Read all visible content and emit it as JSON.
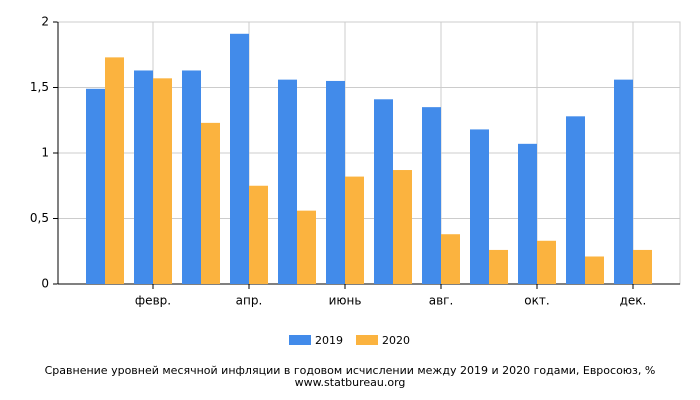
{
  "chart_data": {
    "type": "bar",
    "title": "Сравнение уровней месячной инфляции в годовом исчислении между 2019 и 2020 годами, Евросоюз, %",
    "subtitle": "www.statbureau.org",
    "categories": [
      null,
      "февр.",
      null,
      "апр.",
      null,
      "июнь",
      null,
      "авг.",
      null,
      "окт.",
      null,
      "дек."
    ],
    "series": [
      {
        "name": "2019",
        "color": "#428bea",
        "values": [
          1.49,
          1.63,
          1.63,
          1.91,
          1.56,
          1.55,
          1.41,
          1.35,
          1.18,
          1.07,
          1.28,
          1.56
        ]
      },
      {
        "name": "2020",
        "color": "#fbb33f",
        "values": [
          1.73,
          1.57,
          1.23,
          0.75,
          0.56,
          0.82,
          0.87,
          0.38,
          0.26,
          0.33,
          0.21,
          0.26
        ]
      }
    ],
    "ylim": [
      0,
      2
    ],
    "yticks": [
      0,
      {
        "value": 0.5,
        "label": "0,5"
      },
      1,
      {
        "value": 1.5,
        "label": "1,5"
      },
      2
    ],
    "grid": true
  }
}
